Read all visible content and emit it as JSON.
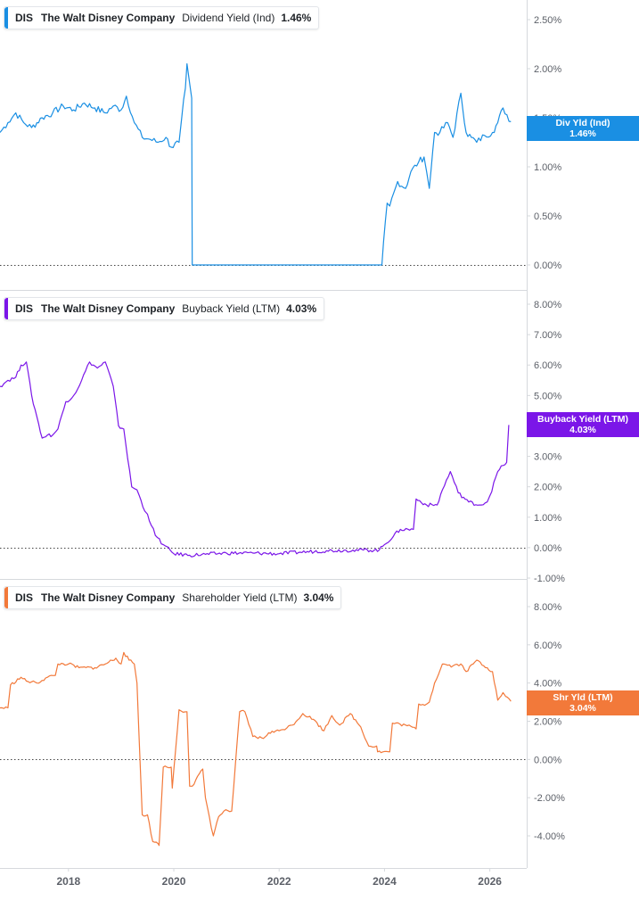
{
  "colors": {
    "dividend": "#1a8fe3",
    "buyback": "#7b16e8",
    "shareholder": "#f2793a",
    "grid_border": "#d6d9dd",
    "axis_text": "#5c6068"
  },
  "x_axis": {
    "domain": [
      2016.7,
      2026.7
    ],
    "ticks": [
      {
        "value": 2018,
        "label": "2018"
      },
      {
        "value": 2020,
        "label": "2020"
      },
      {
        "value": 2022,
        "label": "2022"
      },
      {
        "value": 2024,
        "label": "2024"
      },
      {
        "value": 2026,
        "label": "2026"
      }
    ]
  },
  "panels": [
    {
      "id": "dividend",
      "legend": {
        "ticker": "DIS",
        "company": "The Walt Disney Company",
        "metric": "Dividend Yield (Ind)",
        "value": "1.46%"
      },
      "tag": {
        "line1": "Div Yld (Ind)",
        "line2": "1.46%"
      }
    },
    {
      "id": "buyback",
      "legend": {
        "ticker": "DIS",
        "company": "The Walt Disney Company",
        "metric": "Buyback Yield (LTM)",
        "value": "4.03%"
      },
      "tag": {
        "line1": "Buyback Yield (LTM)",
        "line2": "4.03%"
      }
    },
    {
      "id": "shareholder",
      "legend": {
        "ticker": "DIS",
        "company": "The Walt Disney Company",
        "metric": "Shareholder Yield (LTM)",
        "value": "3.04%"
      },
      "tag": {
        "line1": "Shr Yld (LTM)",
        "line2": "3.04%"
      }
    }
  ],
  "chart_data": [
    {
      "type": "line",
      "title": "DIS The Walt Disney Company Dividend Yield (Ind)",
      "ylim": [
        0,
        2.8
      ],
      "y_ticks": [
        {
          "value": 0,
          "label": "0.00%"
        },
        {
          "value": 0.5,
          "label": "0.50%"
        },
        {
          "value": 1.0,
          "label": "1.00%"
        },
        {
          "value": 1.5,
          "label": "1.50%"
        },
        {
          "value": 2.0,
          "label": "2.00%"
        },
        {
          "value": 2.5,
          "label": "2.50%"
        }
      ],
      "zero_line": true,
      "series": [
        {
          "name": "Dividend Yield (Ind)",
          "x": [
            2016.7,
            2016.85,
            2017.0,
            2017.15,
            2017.3,
            2017.5,
            2017.7,
            2017.9,
            2018.1,
            2018.3,
            2018.5,
            2018.7,
            2018.85,
            2019.0,
            2019.1,
            2019.25,
            2019.4,
            2019.55,
            2019.7,
            2019.85,
            2019.95,
            2020.1,
            2020.15,
            2020.22,
            2020.25,
            2020.3,
            2020.34,
            2020.35,
            2020.36,
            2021.0,
            2022.0,
            2023.1,
            2023.95,
            2024.05,
            2024.1,
            2024.25,
            2024.4,
            2024.5,
            2024.65,
            2024.75,
            2024.8,
            2024.85,
            2024.95,
            2025.05,
            2025.2,
            2025.3,
            2025.45,
            2025.55,
            2025.65,
            2025.75,
            2025.9,
            2026.05,
            2026.15,
            2026.25,
            2026.4
          ],
          "y": [
            1.35,
            1.45,
            1.55,
            1.45,
            1.4,
            1.5,
            1.55,
            1.62,
            1.58,
            1.65,
            1.6,
            1.55,
            1.62,
            1.58,
            1.72,
            1.45,
            1.3,
            1.28,
            1.25,
            1.3,
            1.2,
            1.25,
            1.5,
            1.8,
            2.05,
            1.85,
            1.7,
            0.0,
            0.0,
            0.0,
            0.0,
            0.0,
            0.0,
            0.63,
            0.6,
            0.85,
            0.78,
            0.95,
            1.05,
            1.1,
            0.95,
            0.78,
            1.35,
            1.35,
            1.45,
            1.3,
            1.75,
            1.35,
            1.3,
            1.25,
            1.32,
            1.35,
            1.45,
            1.6,
            1.46
          ]
        }
      ]
    },
    {
      "type": "line",
      "title": "DIS The Walt Disney Company Buyback Yield (LTM)",
      "ylim": [
        -1.0,
        8.6
      ],
      "y_ticks": [
        {
          "value": -1,
          "label": "-1.00%"
        },
        {
          "value": 0,
          "label": "0.00%"
        },
        {
          "value": 1,
          "label": "1.00%"
        },
        {
          "value": 2,
          "label": "2.00%"
        },
        {
          "value": 3,
          "label": "3.00%"
        },
        {
          "value": 4,
          "label": "4.00%"
        },
        {
          "value": 5,
          "label": "5.00%"
        },
        {
          "value": 6,
          "label": "6.00%"
        },
        {
          "value": 7,
          "label": "7.00%"
        },
        {
          "value": 8,
          "label": "8.00%"
        }
      ],
      "zero_line": true,
      "series": [
        {
          "name": "Buyback Yield (LTM)",
          "x": [
            2016.7,
            2016.85,
            2017.0,
            2017.1,
            2017.2,
            2017.3,
            2017.4,
            2017.5,
            2017.6,
            2017.7,
            2017.8,
            2017.95,
            2018.1,
            2018.25,
            2018.4,
            2018.55,
            2018.7,
            2018.85,
            2018.95,
            2019.05,
            2019.2,
            2019.3,
            2019.45,
            2019.5,
            2019.65,
            2019.8,
            2020.0,
            2020.3,
            2020.6,
            2021.0,
            2021.5,
            2022.0,
            2022.4,
            2022.9,
            2023.4,
            2023.9,
            2024.0,
            2024.3,
            2024.55,
            2024.6,
            2024.8,
            2025.0,
            2025.1,
            2025.25,
            2025.4,
            2025.6,
            2025.8,
            2025.95,
            2026.0,
            2026.15,
            2026.25,
            2026.32,
            2026.36
          ],
          "y": [
            5.3,
            5.5,
            5.6,
            6.0,
            6.1,
            5.0,
            4.3,
            3.6,
            3.7,
            3.7,
            3.9,
            4.8,
            5.0,
            5.5,
            6.1,
            5.9,
            6.1,
            5.3,
            4.0,
            3.9,
            2.0,
            1.9,
            1.2,
            1.1,
            0.4,
            0.1,
            -0.2,
            -0.25,
            -0.22,
            -0.18,
            -0.18,
            -0.2,
            -0.15,
            -0.1,
            -0.08,
            -0.08,
            0.1,
            0.6,
            0.6,
            1.6,
            1.4,
            1.4,
            1.9,
            2.5,
            1.8,
            1.5,
            1.4,
            1.5,
            1.7,
            2.5,
            2.7,
            2.8,
            4.03
          ]
        }
      ]
    },
    {
      "type": "line",
      "title": "DIS The Walt Disney Company Shareholder Yield (LTM)",
      "ylim": [
        -5.8,
        8.8
      ],
      "y_ticks": [
        {
          "value": -4,
          "label": "-4.00%"
        },
        {
          "value": -2,
          "label": "-2.00%"
        },
        {
          "value": 0,
          "label": "0.00%"
        },
        {
          "value": 2,
          "label": "2.00%"
        },
        {
          "value": 4,
          "label": "4.00%"
        },
        {
          "value": 6,
          "label": "6.00%"
        },
        {
          "value": 8,
          "label": "8.00%"
        }
      ],
      "zero_line": true,
      "series": [
        {
          "name": "Shareholder Yield (LTM)",
          "x": [
            2016.7,
            2016.85,
            2016.9,
            2017.1,
            2017.2,
            2017.4,
            2017.6,
            2017.75,
            2017.8,
            2018.0,
            2018.2,
            2018.5,
            2018.7,
            2018.9,
            2019.0,
            2019.05,
            2019.15,
            2019.25,
            2019.3,
            2019.4,
            2019.5,
            2019.6,
            2019.7,
            2019.72,
            2019.8,
            2019.95,
            2019.97,
            2020.1,
            2020.25,
            2020.3,
            2020.35,
            2020.55,
            2020.6,
            2020.75,
            2020.85,
            2020.95,
            2021.1,
            2021.25,
            2021.35,
            2021.5,
            2021.7,
            2021.8,
            2022.0,
            2022.25,
            2022.45,
            2022.65,
            2022.85,
            2023.0,
            2023.15,
            2023.35,
            2023.55,
            2023.7,
            2023.85,
            2023.87,
            2024.1,
            2024.15,
            2024.4,
            2024.6,
            2024.65,
            2024.8,
            2024.85,
            2024.95,
            2025.1,
            2025.3,
            2025.45,
            2025.55,
            2025.75,
            2025.95,
            2026.05,
            2026.15,
            2026.25,
            2026.3,
            2026.4
          ],
          "y": [
            2.7,
            2.7,
            3.9,
            4.3,
            4.1,
            4.0,
            4.3,
            4.4,
            5.0,
            5.0,
            4.8,
            4.8,
            5.0,
            5.3,
            5.0,
            5.6,
            5.2,
            5.0,
            4.0,
            -2.9,
            -2.9,
            -4.3,
            -4.4,
            -4.5,
            -0.4,
            -0.4,
            -1.5,
            2.6,
            2.5,
            -1.4,
            -1.4,
            -0.5,
            -2.0,
            -4.0,
            -3.0,
            -2.7,
            -2.7,
            2.5,
            2.5,
            1.2,
            1.1,
            1.4,
            1.5,
            1.8,
            2.4,
            2.1,
            1.5,
            2.3,
            1.8,
            2.4,
            1.7,
            0.7,
            0.7,
            0.4,
            0.4,
            1.9,
            1.8,
            1.6,
            2.9,
            2.9,
            3.0,
            4.0,
            5.0,
            4.9,
            5.0,
            4.6,
            5.2,
            4.8,
            4.6,
            3.1,
            3.5,
            3.3,
            3.04
          ]
        }
      ]
    }
  ]
}
